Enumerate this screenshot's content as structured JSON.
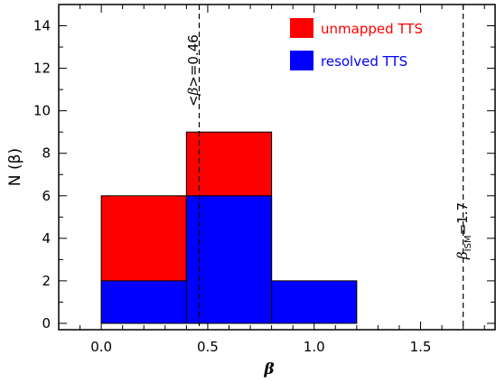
{
  "chart_data": {
    "type": "bar",
    "xlabel": "β",
    "ylabel": "N (β)",
    "xlim": [
      -0.2,
      1.85
    ],
    "ylim": [
      -0.3,
      15
    ],
    "x_ticks": [
      0.0,
      0.5,
      1.0,
      1.5
    ],
    "x_tick_labels": [
      "0.0",
      "0.5",
      "1.0",
      "1.5"
    ],
    "y_ticks": [
      0,
      2,
      4,
      6,
      8,
      10,
      12,
      14
    ],
    "y_tick_labels": [
      "0",
      "2",
      "4",
      "6",
      "8",
      "10",
      "12",
      "14"
    ],
    "bins": [
      [
        0.0,
        0.4
      ],
      [
        0.4,
        0.8
      ],
      [
        0.8,
        1.2
      ]
    ],
    "series": [
      {
        "name": "unmapped TTS",
        "color": "#ff0000",
        "values": [
          6,
          9,
          0
        ]
      },
      {
        "name": "resolved TTS",
        "color": "#0000ff",
        "values": [
          2,
          6,
          2
        ]
      }
    ],
    "reference_lines": [
      {
        "x": 0.46,
        "label_parts": [
          "<",
          "β",
          ">=0.46"
        ]
      },
      {
        "x": 1.7,
        "label_parts": [
          "β",
          "ISM",
          "=1.7"
        ]
      }
    ],
    "legend_position": "top-right",
    "grid": false
  }
}
